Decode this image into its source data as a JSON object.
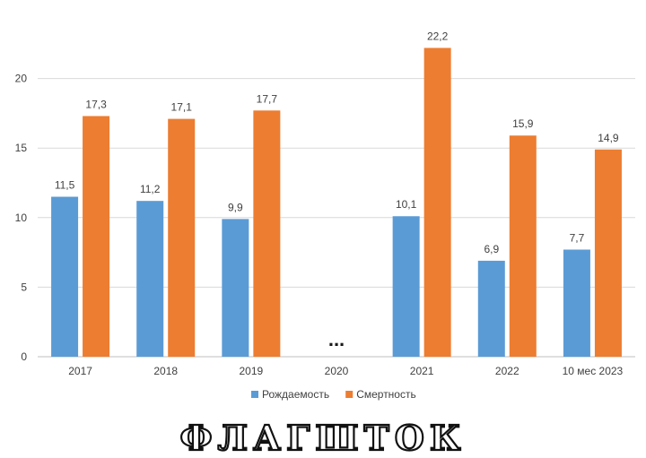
{
  "chart_data": {
    "type": "bar",
    "categories": [
      "2017",
      "2018",
      "2019",
      "2020",
      "2021",
      "2022",
      "10 мес 2023"
    ],
    "series": [
      {
        "name": "Рождаемость",
        "color": "#5B9BD5",
        "values": [
          11.5,
          11.2,
          9.9,
          null,
          10.1,
          6.9,
          7.7
        ]
      },
      {
        "name": "Смертность",
        "color": "#ED7D31",
        "values": [
          17.3,
          17.1,
          17.7,
          null,
          22.2,
          15.9,
          14.9
        ]
      }
    ],
    "data_labels": [
      [
        "11,5",
        "11,2",
        "9,9",
        "",
        "10,1",
        "6,9",
        "7,7"
      ],
      [
        "17,3",
        "17,1",
        "17,7",
        "",
        "22,2",
        "15,9",
        "14,9"
      ]
    ],
    "gap_marker": "...",
    "ylim": [
      0,
      25
    ],
    "yticks": [
      0,
      5,
      10,
      15,
      20
    ],
    "grid": true,
    "legend_position": "bottom",
    "title": "",
    "xlabel": "",
    "ylabel": ""
  },
  "watermark": {
    "text": "ФЛАГШТОК"
  }
}
